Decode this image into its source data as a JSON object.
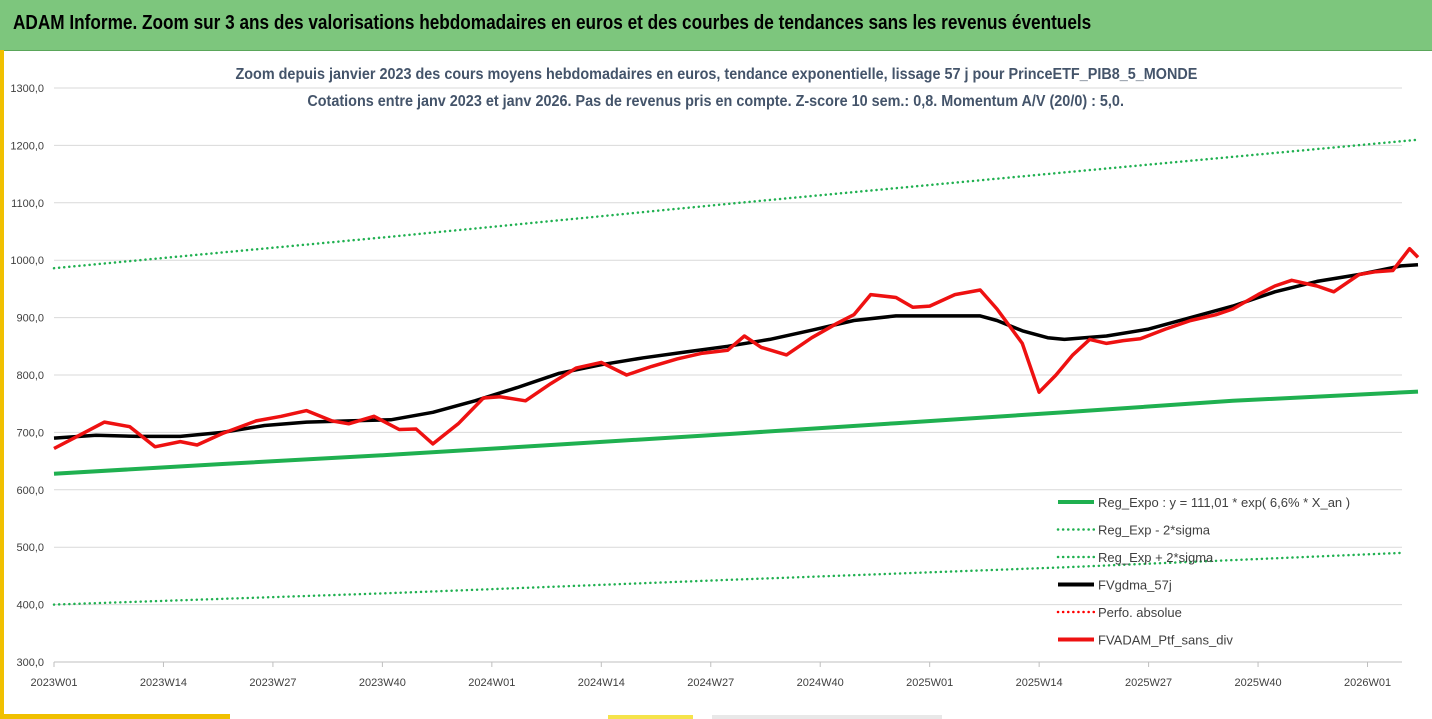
{
  "banner": {
    "title": "ADAM Informe. Zoom sur 3 ans des valorisations hebdomadaires en euros et des courbes de tendances sans les revenus éventuels"
  },
  "chart_data": {
    "type": "line",
    "title": "Zoom depuis janvier 2023 des cours moyens hebdomadaires  en euros, tendance exponentielle, lissage 57 j pour PrinceETF_PIB8_5_MONDE",
    "subtitle": "Cotations entre janv 2023 et janv 2026. Pas de revenus pris en compte. Z-score 10 sem.: 0,8. Momentum  A/V (20/0) : 5,0.",
    "xlabel": "",
    "ylabel": "",
    "ylim": [
      300,
      1300
    ],
    "y_ticks": [
      "300,0",
      "400,0",
      "500,0",
      "600,0",
      "700,0",
      "800,0",
      "900,0",
      "1000,0",
      "1100,0",
      "1200,0",
      "1300,0"
    ],
    "x_tick_labels": [
      "2023W01",
      "2023W14",
      "2023W27",
      "2023W40",
      "2024W01",
      "2024W14",
      "2024W27",
      "2024W40",
      "2025W01",
      "2025W14",
      "2025W27",
      "2025W40",
      "2026W01"
    ],
    "x_tick_week_index": [
      0,
      13,
      26,
      39,
      52,
      65,
      78,
      91,
      104,
      117,
      130,
      143,
      156
    ],
    "x_range_weeks": [
      0,
      162
    ],
    "grid": "horizontal",
    "legend_position": "bottom-right",
    "series": [
      {
        "name": "Reg_Expo : y = 111,01 * exp( 6,6% *  X_an )",
        "color": "#1fb050",
        "style": "solid",
        "width": 4,
        "x": [
          0,
          20,
          40,
          60,
          80,
          100,
          120,
          140,
          162
        ],
        "y": [
          628,
          645,
          661,
          679,
          697,
          716,
          735,
          755,
          771
        ]
      },
      {
        "name": "Reg_Exp - 2*sigma",
        "color": "#1fb050",
        "style": "dotted",
        "width": 2.5,
        "x": [
          0,
          40,
          80,
          120,
          160
        ],
        "y": [
          400,
          420,
          443,
          465,
          490
        ]
      },
      {
        "name": "Reg_Exp + 2*sigma",
        "color": "#1fb050",
        "style": "dotted",
        "width": 2.5,
        "x": [
          0,
          40,
          80,
          120,
          162
        ],
        "y": [
          986,
          1041,
          1098,
          1153,
          1210
        ]
      },
      {
        "name": "FVgdma_57j",
        "color": "#000000",
        "style": "solid",
        "width": 3.5,
        "x": [
          0,
          5,
          10,
          15,
          20,
          25,
          30,
          35,
          40,
          45,
          50,
          55,
          60,
          65,
          70,
          75,
          80,
          85,
          90,
          95,
          100,
          105,
          110,
          112,
          115,
          118,
          120,
          125,
          130,
          135,
          140,
          145,
          150,
          155,
          160,
          162
        ],
        "y": [
          690,
          695,
          693,
          693,
          700,
          712,
          718,
          720,
          722,
          735,
          755,
          778,
          803,
          818,
          830,
          840,
          850,
          862,
          878,
          895,
          903,
          903,
          903,
          895,
          877,
          865,
          862,
          868,
          880,
          900,
          920,
          945,
          963,
          975,
          990,
          992
        ]
      },
      {
        "name": "Perfo. absolue",
        "color": "#ff0000",
        "style": "dotted",
        "width": 2.5,
        "x": [],
        "y": []
      },
      {
        "name": "FVADAM_Ptf_sans_div",
        "color": "#ee1111",
        "style": "solid",
        "width": 3.5,
        "x": [
          0,
          3,
          6,
          9,
          12,
          15,
          17,
          20,
          24,
          27,
          30,
          33,
          35,
          38,
          41,
          43,
          45,
          48,
          51,
          53,
          56,
          59,
          62,
          65,
          68,
          71,
          74,
          77,
          80,
          82,
          84,
          87,
          90,
          93,
          95,
          97,
          100,
          102,
          104,
          107,
          110,
          112,
          115,
          117,
          119,
          121,
          123,
          125,
          127,
          129,
          132,
          135,
          138,
          140,
          143,
          145,
          147,
          150,
          152,
          155,
          157,
          159,
          161,
          162
        ],
        "y": [
          672,
          695,
          718,
          710,
          675,
          684,
          678,
          698,
          720,
          728,
          738,
          720,
          715,
          728,
          705,
          706,
          680,
          715,
          760,
          762,
          755,
          785,
          812,
          822,
          800,
          815,
          828,
          838,
          843,
          868,
          848,
          835,
          865,
          890,
          905,
          940,
          935,
          918,
          920,
          940,
          948,
          915,
          855,
          770,
          800,
          835,
          862,
          855,
          860,
          863,
          880,
          895,
          905,
          915,
          940,
          955,
          965,
          955,
          945,
          975,
          980,
          982,
          1020,
          1005
        ]
      }
    ]
  }
}
